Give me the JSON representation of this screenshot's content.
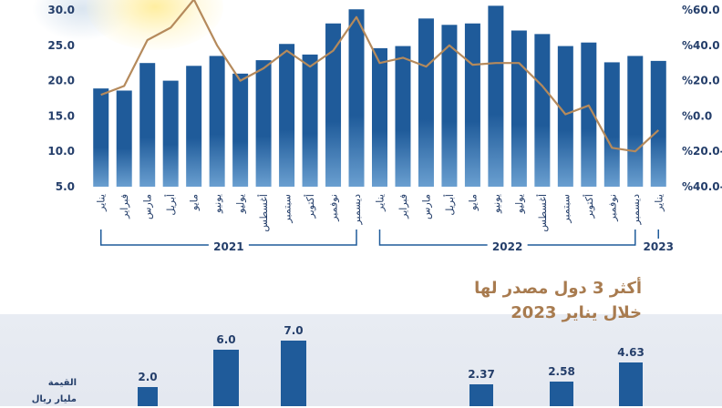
{
  "chart_data": [
    {
      "type": "bar",
      "categories": [
        "يناير",
        "فبراير",
        "مارس",
        "أبريل",
        "مايو",
        "يونيو",
        "يوليو",
        "أغسطس",
        "سبتمبر",
        "أكتوبر",
        "نوفمبر",
        "ديسمبر",
        "يناير",
        "فبراير",
        "مارس",
        "أبريل",
        "مايو",
        "يونيو",
        "يوليو",
        "أغسطس",
        "سبتمبر",
        "أكتوبر",
        "نوفمبر",
        "ديسمبر",
        "يناير"
      ],
      "year_groups": [
        {
          "label": "2021",
          "from": 0,
          "to": 11
        },
        {
          "label": "2022",
          "from": 12,
          "to": 23
        },
        {
          "label": "2023",
          "from": 24,
          "to": 24
        }
      ],
      "series": [
        {
          "type": "bar",
          "axis": "left",
          "values": [
            18.9,
            18.6,
            22.5,
            20.0,
            22.1,
            23.5,
            21.0,
            22.9,
            25.2,
            23.7,
            28.1,
            30.1,
            24.6,
            24.9,
            28.8,
            27.9,
            28.1,
            30.6,
            27.1,
            26.6,
            24.9,
            25.4,
            22.6,
            23.5,
            22.8
          ]
        },
        {
          "type": "line",
          "axis": "right",
          "values": [
            12,
            17,
            43,
            50,
            66,
            40,
            20,
            27,
            37,
            28,
            37,
            56,
            30,
            33,
            28,
            40,
            29,
            30,
            30,
            17,
            1,
            6,
            -18,
            -20,
            -8
          ]
        }
      ],
      "y_left": {
        "ticks": [
          "30.0",
          "25.0",
          "20.0",
          "15.0",
          "10.0",
          "5.0"
        ],
        "ylim": [
          5,
          30
        ]
      },
      "y_right": {
        "ticks": [
          "%60.0",
          "%40.0",
          "%20.0",
          "%0.0",
          "%20.0-",
          "%40.0-"
        ],
        "ylim": [
          -40,
          60
        ]
      },
      "colors": {
        "bar": "#1f5b9a",
        "bar_light": "#6a9fd0",
        "line": "#b58a5c",
        "axis_text": "#243e6a"
      }
    },
    {
      "type": "bar",
      "title_line1": "أكثر 3 دول مصدر لها",
      "title_line2": "خلال يناير 2023",
      "ylabel_line1": "القيمة",
      "ylabel_line2": "مليار ريال",
      "groups": [
        {
          "values": [
            2.0,
            6.0,
            7.0
          ]
        },
        {
          "values": [
            2.37,
            2.58,
            4.63
          ]
        }
      ],
      "value_labels": [
        [
          "2.0",
          "6.0",
          "7.0"
        ],
        [
          "2.37",
          "2.58",
          "4.63"
        ]
      ]
    }
  ]
}
